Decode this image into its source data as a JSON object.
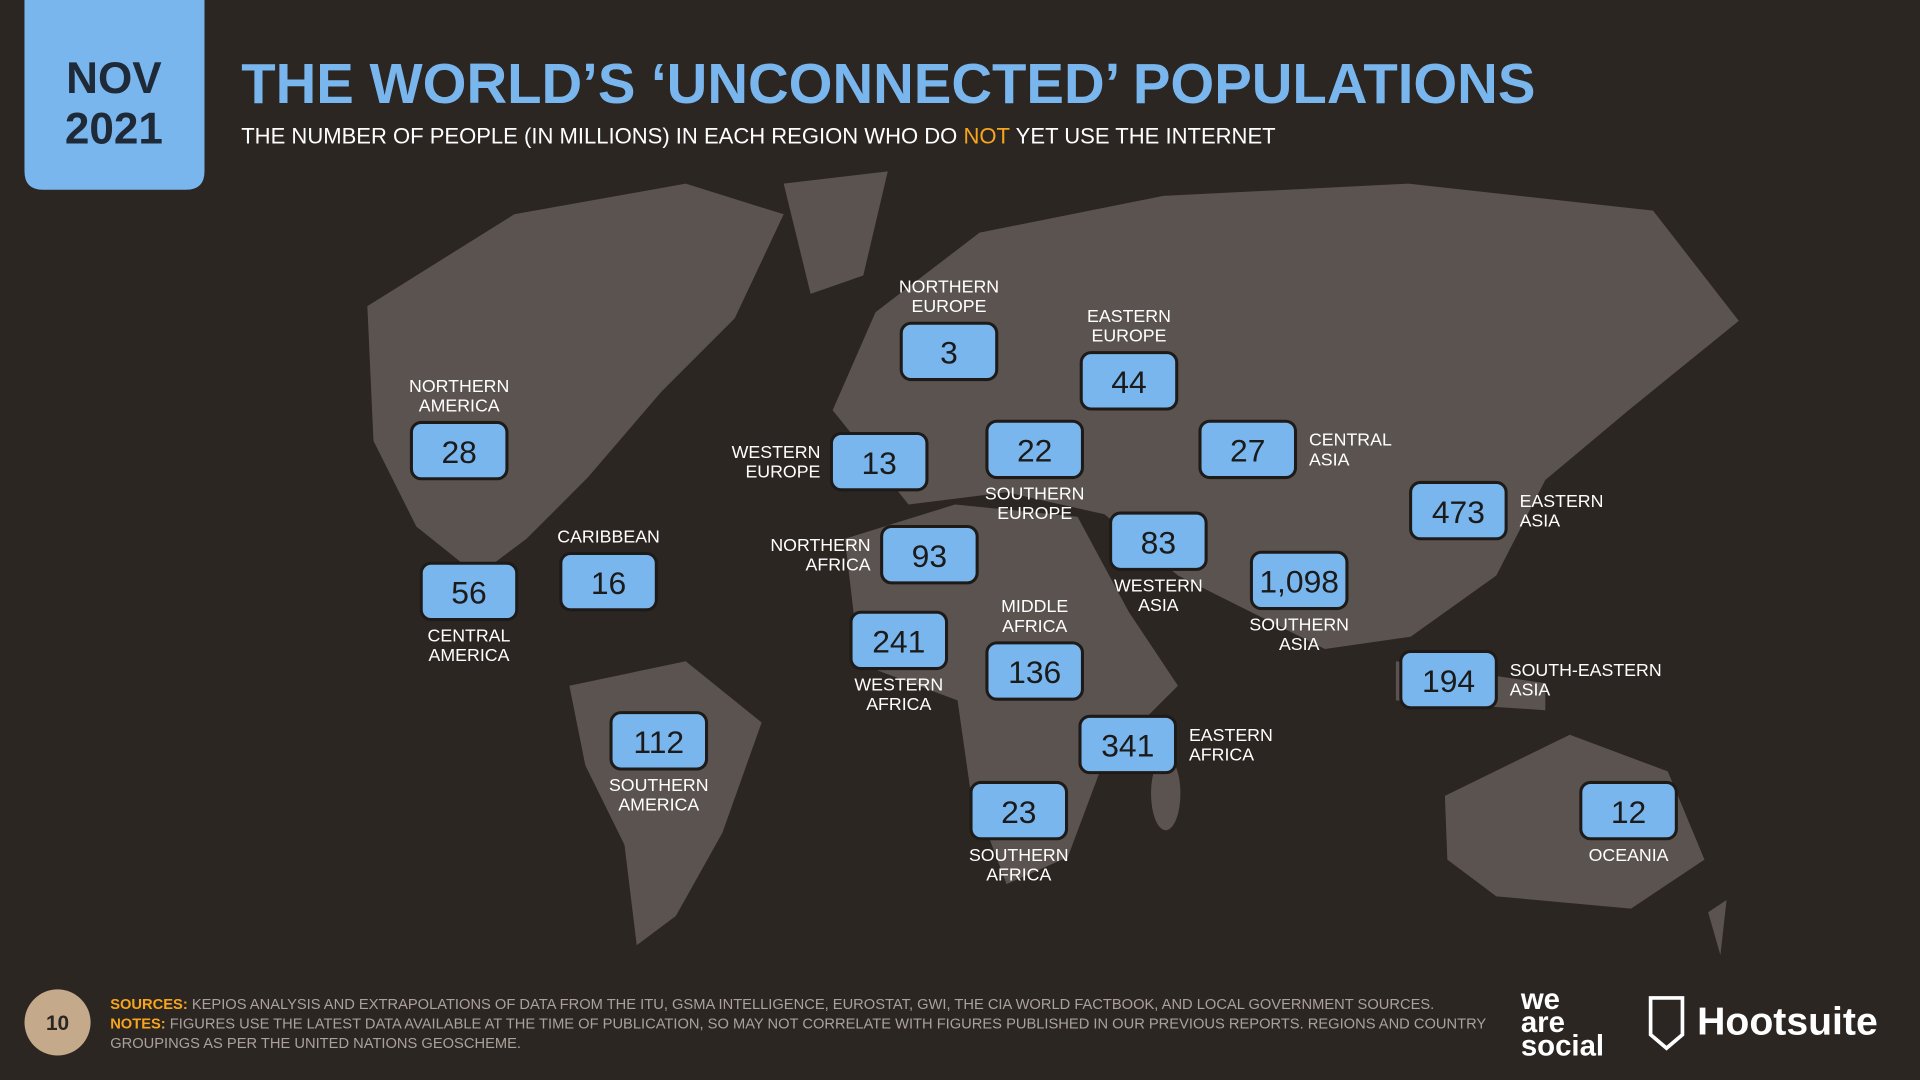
{
  "header": {
    "date": [
      "NOV",
      "2021"
    ],
    "title": "THE WORLD’S ‘UNCONNECTED’ POPULATIONS",
    "subtitle": [
      "THE NUMBER OF PEOPLE (IN MILLIONS) IN EACH REGION WHO DO ",
      "NOT",
      " YET USE THE INTERNET"
    ]
  },
  "regions": [
    {
      "label": [
        "NORTHERN",
        "AMERICA"
      ],
      "value": 28
    },
    {
      "label": [
        "CENTRAL",
        "AMERICA"
      ],
      "value": 56
    },
    {
      "label": [
        "CARIBBEAN"
      ],
      "value": 16
    },
    {
      "label": [
        "SOUTHERN",
        "AMERICA"
      ],
      "value": 112
    },
    {
      "label": [
        "NORTHERN",
        "EUROPE"
      ],
      "value": 3
    },
    {
      "label": [
        "WESTERN",
        "EUROPE"
      ],
      "value": 13
    },
    {
      "label": [
        "SOUTHERN",
        "EUROPE"
      ],
      "value": 22
    },
    {
      "label": [
        "EASTERN",
        "EUROPE"
      ],
      "value": 44
    },
    {
      "label": [
        "NORTHERN",
        "AFRICA"
      ],
      "value": 93
    },
    {
      "label": [
        "WESTERN",
        "AFRICA"
      ],
      "value": 241
    },
    {
      "label": [
        "MIDDLE",
        "AFRICA"
      ],
      "value": 136
    },
    {
      "label": [
        "SOUTHERN",
        "AFRICA"
      ],
      "value": 23
    },
    {
      "label": [
        "EASTERN",
        "AFRICA"
      ],
      "value": 341
    },
    {
      "label": [
        "WESTERN",
        "ASIA"
      ],
      "value": 83
    },
    {
      "label": [
        "CENTRAL",
        "ASIA"
      ],
      "value": 27
    },
    {
      "label": [
        "SOUTHERN",
        "ASIA"
      ],
      "value": 1098,
      "value_label": "1,098"
    },
    {
      "label": [
        "EASTERN",
        "ASIA"
      ],
      "value": 473
    },
    {
      "label": [
        "SOUTH-EASTERN",
        "ASIA"
      ],
      "value": 194
    },
    {
      "label": [
        "OCEANIA"
      ],
      "value": 12
    }
  ],
  "footer": {
    "page": 10,
    "sources_label": "SOURCES:",
    "sources_text": "KEPIOS ANALYSIS AND EXTRAPOLATIONS OF DATA FROM THE ITU, GSMA INTELLIGENCE, EUROSTAT, GWI, THE CIA WORLD FACTBOOK, AND LOCAL GOVERNMENT SOURCES.",
    "notes_label": "NOTES:",
    "notes_text": [
      "FIGURES USE THE LATEST DATA AVAILABLE AT THE TIME OF PUBLICATION, SO MAY NOT CORRELATE WITH FIGURES PUBLISHED IN OUR PREVIOUS REPORTS. REGIONS AND COUNTRY",
      "GROUPINGS AS PER THE UNITED NATIONS GEOSCHEME."
    ],
    "logo_left": [
      "we",
      "are",
      "social"
    ],
    "logo_right": "Hootsuite"
  }
}
